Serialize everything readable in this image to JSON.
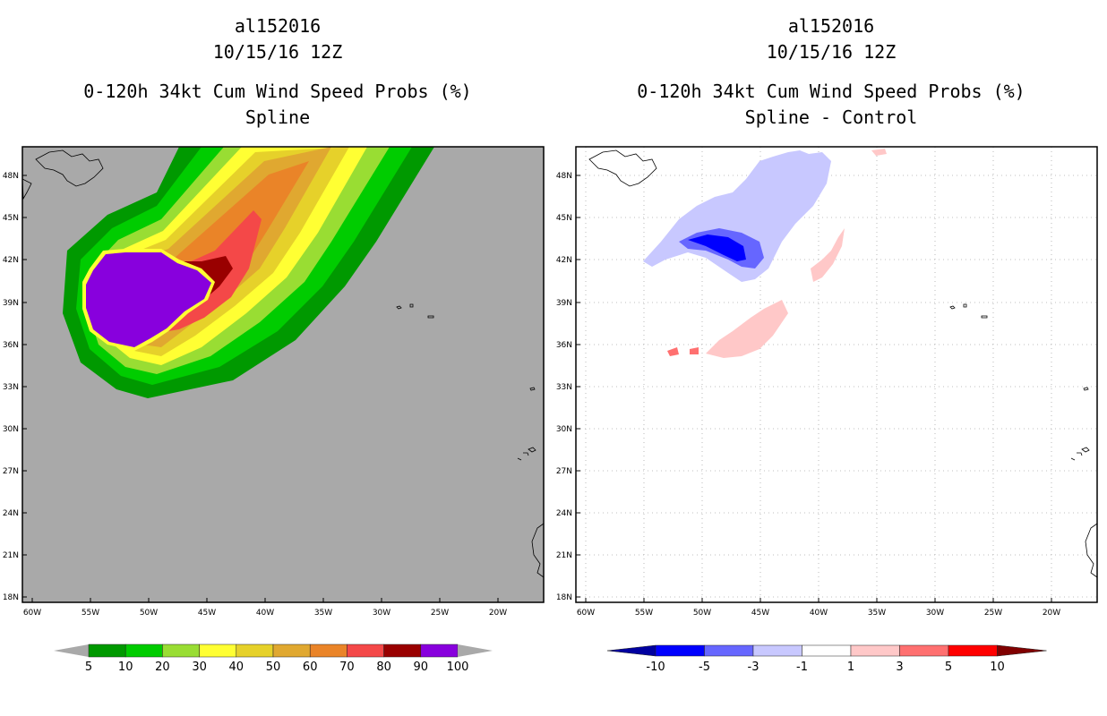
{
  "left": {
    "storm": "al152016",
    "date": "10/15/16 12Z",
    "product": "0-120h 34kt Cum Wind Speed Probs (%)",
    "variant": "Spline",
    "colorbar": {
      "labels": [
        "5",
        "10",
        "20",
        "30",
        "40",
        "50",
        "60",
        "70",
        "80",
        "90",
        "100"
      ],
      "colors": [
        "#009900",
        "#00cc00",
        "#99dd33",
        "#ffff33",
        "#e6d12a",
        "#e0a830",
        "#ea8428",
        "#f44848",
        "#990000",
        "#8800dd"
      ],
      "background": "#a9a9a9"
    }
  },
  "right": {
    "storm": "al152016",
    "date": "10/15/16 12Z",
    "product": "0-120h 34kt Cum Wind Speed Probs (%)",
    "variant": "Spline - Control",
    "colorbar": {
      "labels": [
        "-10",
        "-5",
        "-3",
        "-1",
        "1",
        "3",
        "5",
        "10"
      ],
      "colors": [
        "#0000a0",
        "#0000ff",
        "#6666ff",
        "#c8c8ff",
        "#ffffff",
        "#ffc8c8",
        "#ff7070",
        "#ff0000",
        "#800000"
      ]
    }
  },
  "axes": {
    "lat_labels": [
      "48N",
      "45N",
      "42N",
      "39N",
      "36N",
      "33N",
      "30N",
      "27N",
      "24N",
      "21N",
      "18N"
    ],
    "lon_labels": [
      "60W",
      "55W",
      "50W",
      "45W",
      "40W",
      "35W",
      "30W",
      "25W",
      "20W"
    ]
  }
}
